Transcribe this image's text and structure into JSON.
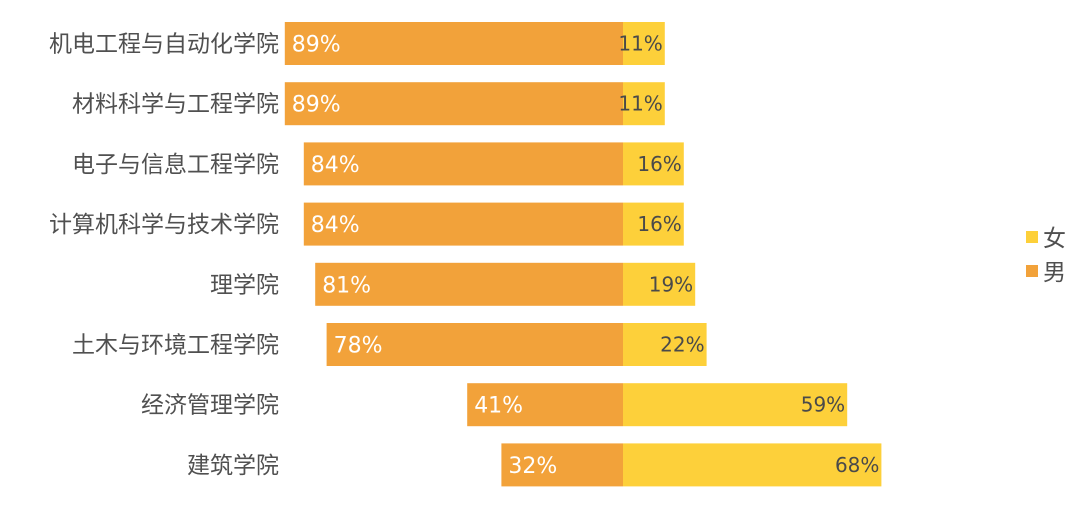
{
  "chart_data": {
    "type": "bar",
    "orientation": "horizontal",
    "stacked": true,
    "categories": [
      "机电工程与自动化学院",
      "材料科学与工程学院",
      "电子与信息工程学院",
      "计算机科学与技术学院",
      "理学院",
      "土木与环境工程学院",
      "经济管理学院",
      "建筑学院"
    ],
    "series": [
      {
        "name": "男",
        "color": "#f2a23a",
        "values": [
          89,
          89,
          84,
          84,
          81,
          78,
          41,
          32
        ],
        "labels": [
          "89%",
          "89%",
          "84%",
          "84%",
          "81%",
          "78%",
          "41%",
          "32%"
        ]
      },
      {
        "name": "女",
        "color": "#fdd03a",
        "values": [
          11,
          11,
          16,
          16,
          19,
          22,
          59,
          68
        ],
        "labels": [
          "11%",
          "11%",
          "16%",
          "16%",
          "19%",
          "22%",
          "59%",
          "68%"
        ]
      }
    ],
    "legend": {
      "position": "right",
      "items": [
        {
          "name": "女",
          "color": "#fdd03a"
        },
        {
          "name": "男",
          "color": "#f2a23a"
        }
      ]
    },
    "grid": false
  }
}
